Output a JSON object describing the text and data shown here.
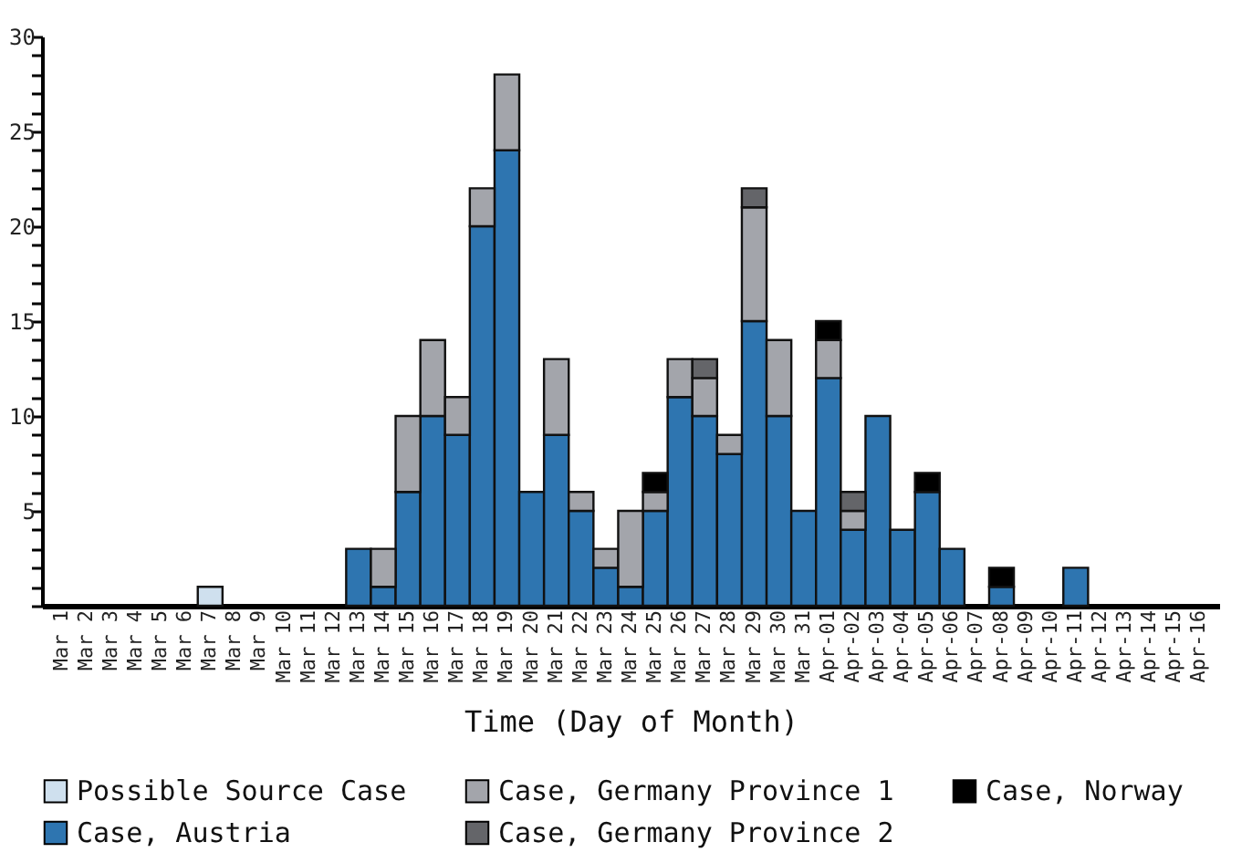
{
  "chart_data": {
    "type": "bar",
    "stacked": true,
    "xlabel": "Time (Day of Month)",
    "categories": [
      "Mar 1",
      "Mar 2",
      "Mar 3",
      "Mar 4",
      "Mar 5",
      "Mar 6",
      "Mar 7",
      "Mar 8",
      "Mar 9",
      "Mar 10",
      "Mar 11",
      "Mar 12",
      "Mar 13",
      "Mar 14",
      "Mar 15",
      "Mar 16",
      "Mar 17",
      "Mar 18",
      "Mar 19",
      "Mar 20",
      "Mar 21",
      "Mar 22",
      "Mar 23",
      "Mar 24",
      "Mar 25",
      "Mar 26",
      "Mar 27",
      "Mar 28",
      "Mar 29",
      "Mar 30",
      "Mar 31",
      "Apr-01",
      "Apr-02",
      "Apr-03",
      "Apr-04",
      "Apr-05",
      "Apr-06",
      "Apr-07",
      "Apr-08",
      "Apr-09",
      "Apr-10",
      "Apr-11",
      "Apr-12",
      "Apr-13",
      "Apr-14",
      "Apr-15",
      "Apr-16"
    ],
    "series": [
      {
        "name": "Possible Source Case",
        "color": "#cfe0ee",
        "values": [
          0,
          0,
          0,
          0,
          0,
          0,
          1,
          0,
          0,
          0,
          0,
          0,
          0,
          0,
          0,
          0,
          0,
          0,
          0,
          0,
          0,
          0,
          0,
          0,
          0,
          0,
          0,
          0,
          0,
          0,
          0,
          0,
          0,
          0,
          0,
          0,
          0,
          0,
          0,
          0,
          0,
          0,
          0,
          0,
          0,
          0,
          0
        ]
      },
      {
        "name": "Case, Austria",
        "color": "#2e75b0",
        "values": [
          0,
          0,
          0,
          0,
          0,
          0,
          0,
          0,
          0,
          0,
          0,
          0,
          3,
          1,
          6,
          10,
          9,
          20,
          24,
          6,
          9,
          5,
          2,
          1,
          5,
          11,
          10,
          8,
          15,
          10,
          5,
          12,
          4,
          10,
          4,
          6,
          3,
          0,
          1,
          0,
          0,
          2,
          0,
          0,
          0,
          0,
          0
        ]
      },
      {
        "name": "Case, Germany Province 1",
        "color": "#a3a5ab",
        "values": [
          0,
          0,
          0,
          0,
          0,
          0,
          0,
          0,
          0,
          0,
          0,
          0,
          0,
          2,
          4,
          4,
          2,
          2,
          4,
          0,
          4,
          1,
          1,
          4,
          1,
          2,
          2,
          1,
          6,
          4,
          0,
          2,
          1,
          0,
          0,
          0,
          0,
          0,
          0,
          0,
          0,
          0,
          0,
          0,
          0,
          0,
          0
        ]
      },
      {
        "name": "Case, Germany Province 2",
        "color": "#646569",
        "values": [
          0,
          0,
          0,
          0,
          0,
          0,
          0,
          0,
          0,
          0,
          0,
          0,
          0,
          0,
          0,
          0,
          0,
          0,
          0,
          0,
          0,
          0,
          0,
          0,
          0,
          0,
          1,
          0,
          1,
          0,
          0,
          0,
          1,
          0,
          0,
          0,
          0,
          0,
          0,
          0,
          0,
          0,
          0,
          0,
          0,
          0,
          0
        ]
      },
      {
        "name": "Case, Norway",
        "color": "#000000",
        "values": [
          0,
          0,
          0,
          0,
          0,
          0,
          0,
          0,
          0,
          0,
          0,
          0,
          0,
          0,
          0,
          0,
          0,
          0,
          0,
          0,
          0,
          0,
          0,
          0,
          1,
          0,
          0,
          0,
          0,
          0,
          0,
          1,
          0,
          0,
          0,
          1,
          0,
          0,
          1,
          0,
          0,
          0,
          0,
          0,
          0,
          0,
          0
        ]
      }
    ],
    "ylim": [
      0,
      30
    ],
    "yticks": [
      {
        "value": 0,
        "label": null
      },
      {
        "value": 1,
        "label": null
      },
      {
        "value": 2,
        "label": null
      },
      {
        "value": 3,
        "label": null
      },
      {
        "value": 4,
        "label": null
      },
      5,
      {
        "value": 6,
        "label": null
      },
      {
        "value": 7,
        "label": null
      },
      {
        "value": 8,
        "label": null
      },
      {
        "value": 9,
        "label": null
      },
      10,
      {
        "value": 11,
        "label": null
      },
      {
        "value": 12,
        "label": null
      },
      {
        "value": 13,
        "label": null
      },
      {
        "value": 14,
        "label": null
      },
      15,
      {
        "value": 16,
        "label": null
      },
      {
        "value": 17,
        "label": null
      },
      {
        "value": 18,
        "label": null
      },
      {
        "value": 19,
        "label": null
      },
      20,
      {
        "value": 21,
        "label": null
      },
      {
        "value": 22,
        "label": null
      },
      {
        "value": 23,
        "label": null
      },
      {
        "value": 24,
        "label": null
      },
      25,
      {
        "value": 26,
        "label": null
      },
      {
        "value": 27,
        "label": null
      },
      {
        "value": 28,
        "label": null
      },
      {
        "value": 29,
        "label": null
      },
      30
    ],
    "grid": false,
    "legend": "bottom"
  }
}
